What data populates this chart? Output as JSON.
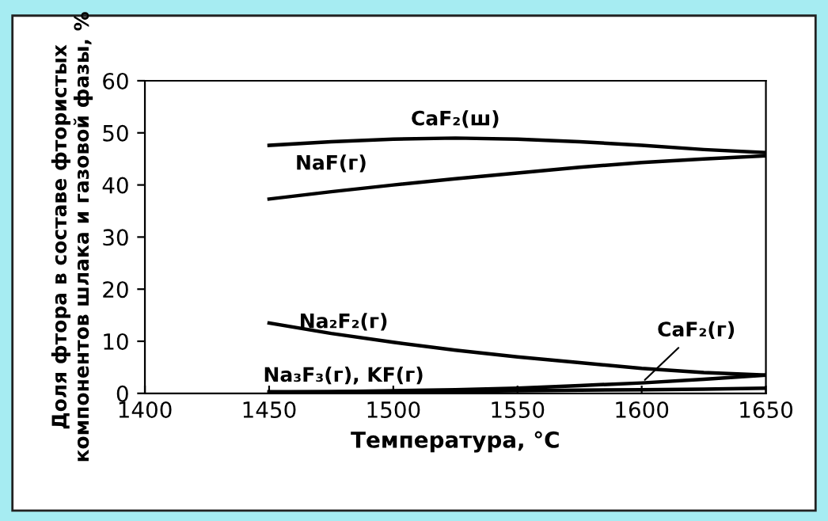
{
  "chart_data": {
    "type": "line",
    "xlabel": "Температура, °C",
    "ylabel": "Доля фтора в составе фтористых\nкомпонентов шлака и газовой фазы, %",
    "x": [
      1450,
      1475,
      1500,
      1525,
      1550,
      1575,
      1600,
      1625,
      1650
    ],
    "series": [
      {
        "name": "CaF₂(ш)",
        "color": "#000000",
        "values": [
          47.6,
          48.3,
          48.8,
          49.0,
          48.8,
          48.3,
          47.6,
          46.8,
          46.2
        ]
      },
      {
        "name": "NaF(г)",
        "color": "#000000",
        "values": [
          37.3,
          38.7,
          40.0,
          41.2,
          42.3,
          43.4,
          44.3,
          45.0,
          45.6
        ]
      },
      {
        "name": "Na₂F₂(г)",
        "color": "#000000",
        "values": [
          13.5,
          11.5,
          9.8,
          8.3,
          7.0,
          5.9,
          4.8,
          4.0,
          3.5
        ]
      },
      {
        "name": "CaF₂(г)",
        "color": "#000000",
        "values": [
          0.2,
          0.3,
          0.5,
          0.7,
          1.0,
          1.5,
          2.0,
          2.7,
          3.5
        ]
      },
      {
        "name": "Na₃F₃(г), KF(г)",
        "color": "#000000",
        "values": [
          0.3,
          0.3,
          0.4,
          0.4,
          0.5,
          0.6,
          0.7,
          0.8,
          1.0
        ]
      }
    ],
    "xlim": [
      1400,
      1650
    ],
    "ylim": [
      0,
      60
    ],
    "xticks": [
      1400,
      1450,
      1500,
      1550,
      1600,
      1650
    ],
    "yticks": [
      0,
      10,
      20,
      30,
      40,
      50,
      60
    ],
    "grid": false,
    "legend": false,
    "marker": "none",
    "line_style": "solid"
  }
}
